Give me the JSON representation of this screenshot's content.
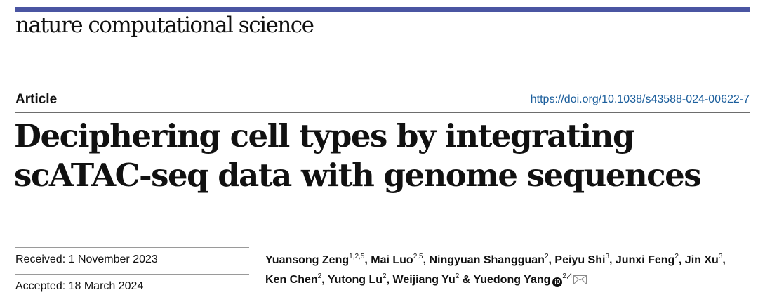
{
  "journal": {
    "name": "nature computational science",
    "accent_color": "#4a55a2"
  },
  "article": {
    "type": "Article",
    "doi": "https://doi.org/10.1038/s43588-024-00622-7",
    "title_line1": "Deciphering cell types by integrating",
    "title_line2": "scATAC-seq data with genome sequences"
  },
  "dates": {
    "received": "Received: 1 November 2023",
    "accepted": "Accepted: 18 March 2024"
  },
  "authors": [
    {
      "name": "Yuansong Zeng",
      "affil": "1,2,5",
      "sep": ", "
    },
    {
      "name": "Mai Luo",
      "affil": "2,5",
      "sep": ", "
    },
    {
      "name": "Ningyuan Shangguan",
      "affil": "2",
      "sep": ", "
    },
    {
      "name": "Peiyu Shi",
      "affil": "3",
      "sep": ", "
    },
    {
      "name": "Junxi Feng",
      "affil": "2",
      "sep": ", "
    },
    {
      "name": "Jin Xu",
      "affil": "3",
      "sep": ", "
    },
    {
      "name": "Ken Chen",
      "affil": "2",
      "sep": ", "
    },
    {
      "name": "Yutong Lu",
      "affil": "2",
      "sep": ", "
    },
    {
      "name": "Weijiang Yu",
      "affil": "2",
      "sep": " & "
    },
    {
      "name": "Yuedong Yang",
      "affil": "2,4",
      "sep": ""
    }
  ],
  "icons": {
    "orcid": "orcid-icon",
    "email": "mail-icon",
    "orcid_glyph": "iD"
  }
}
